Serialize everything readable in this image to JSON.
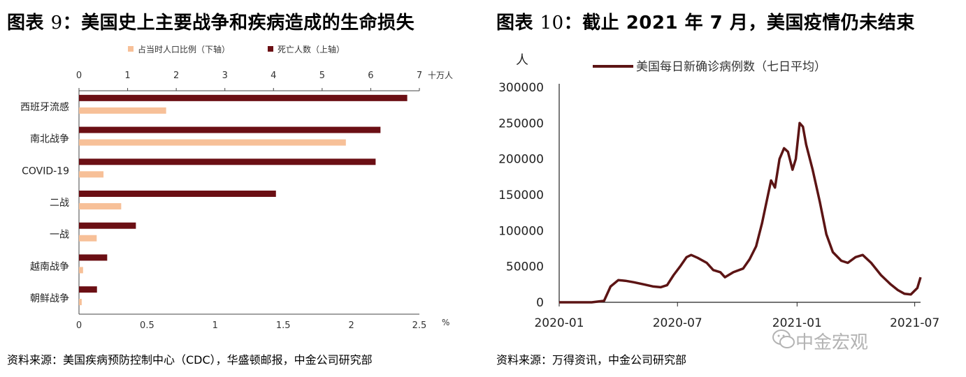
{
  "left": {
    "title_prefix": "图表 ",
    "title_num": "9",
    "title_text": "：美国史上主要战争和疾病造成的生命损失",
    "source": "资料来源：美国疾病预防控制中心（CDC），华盛顿邮报，中金公司研究部"
  },
  "right": {
    "title_prefix": "图表 ",
    "title_num": "10",
    "title_text": "：截止 2021 年 7 月，美国疫情仍未结束",
    "source": "资料来源：万得资讯，中金公司研究部",
    "watermark": "中金宏观"
  },
  "colors": {
    "deaths": "#6b0f14",
    "share": "#f7c098",
    "line": "#5c1414",
    "axis": "#444444"
  },
  "chart_data": [
    {
      "type": "bar",
      "orientation": "horizontal",
      "categories": [
        "西班牙流感",
        "南北战争",
        "COVID-19",
        "二战",
        "一战",
        "越南战争",
        "朝鲜战争"
      ],
      "series": [
        {
          "name": "死亡人数（上轴）",
          "axis": "top",
          "values": [
            6.75,
            6.2,
            6.1,
            4.05,
            1.17,
            0.58,
            0.37
          ]
        },
        {
          "name": "占当时人口比例（下轴）",
          "axis": "bottom",
          "values": [
            0.64,
            1.96,
            0.18,
            0.31,
            0.13,
            0.03,
            0.02
          ]
        }
      ],
      "top_axis": {
        "ticks": [
          0,
          1,
          2,
          3,
          4,
          5,
          6,
          7
        ],
        "unit": "十万人",
        "range": [
          0,
          7
        ]
      },
      "bottom_axis": {
        "ticks": [
          "0",
          "0.5",
          "1",
          "1.5",
          "2",
          "2.5"
        ],
        "unit": "%",
        "range": [
          0,
          2.5
        ]
      },
      "legend": {
        "placement": "top",
        "entries": [
          "占当时人口比例（下轴）",
          "死亡人数（上轴）"
        ]
      }
    },
    {
      "type": "line",
      "series": [
        {
          "name": "美国每日新确诊病例数（七日平均）"
        }
      ],
      "y_unit": "人",
      "ylim": [
        0,
        300000
      ],
      "y_ticks": [
        "0",
        "50000",
        "100000",
        "150000",
        "200000",
        "250000",
        "300000"
      ],
      "x_ticks": [
        "2020-01",
        "2020-07",
        "2021-01",
        "2021-07"
      ],
      "x": [
        "2020-01-01",
        "2020-02-01",
        "2020-02-20",
        "2020-03-10",
        "2020-03-20",
        "2020-04-01",
        "2020-04-12",
        "2020-04-25",
        "2020-05-10",
        "2020-05-25",
        "2020-06-05",
        "2020-06-15",
        "2020-06-25",
        "2020-07-05",
        "2020-07-15",
        "2020-07-22",
        "2020-08-01",
        "2020-08-15",
        "2020-08-25",
        "2020-09-05",
        "2020-09-12",
        "2020-09-25",
        "2020-10-10",
        "2020-10-20",
        "2020-10-30",
        "2020-11-08",
        "2020-11-15",
        "2020-11-22",
        "2020-11-28",
        "2020-12-05",
        "2020-12-12",
        "2020-12-18",
        "2020-12-25",
        "2020-12-30",
        "2021-01-05",
        "2021-01-10",
        "2021-01-15",
        "2021-01-25",
        "2021-02-05",
        "2021-02-15",
        "2021-02-25",
        "2021-03-10",
        "2021-03-20",
        "2021-04-01",
        "2021-04-12",
        "2021-04-25",
        "2021-05-10",
        "2021-05-25",
        "2021-06-05",
        "2021-06-15",
        "2021-06-25",
        "2021-07-05",
        "2021-07-10"
      ],
      "values": [
        0,
        0,
        0,
        2000,
        22000,
        31000,
        30000,
        28000,
        25000,
        22000,
        21000,
        24000,
        38000,
        50000,
        63000,
        66000,
        62000,
        55000,
        45000,
        42000,
        35000,
        42000,
        47000,
        60000,
        78000,
        110000,
        140000,
        170000,
        160000,
        200000,
        215000,
        210000,
        185000,
        200000,
        250000,
        245000,
        220000,
        185000,
        140000,
        95000,
        70000,
        58000,
        55000,
        63000,
        66000,
        55000,
        38000,
        25000,
        17000,
        12000,
        11000,
        20000,
        35000
      ],
      "legend": {
        "placement": "top-center"
      }
    }
  ]
}
